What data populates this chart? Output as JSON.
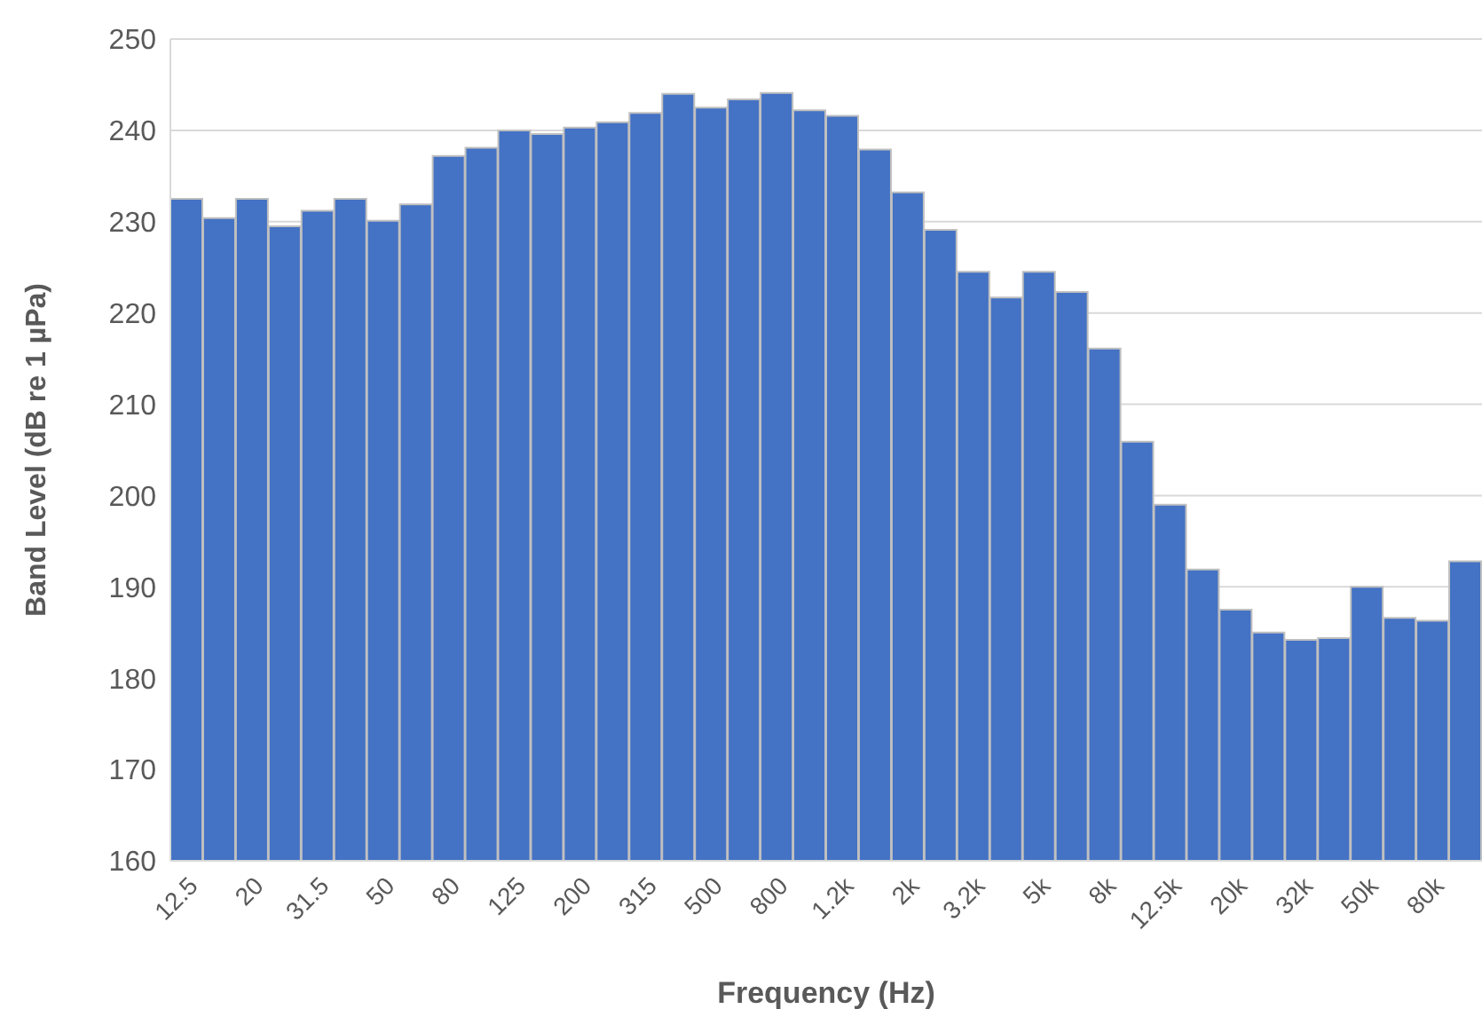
{
  "chart_data": {
    "type": "bar",
    "xlabel": "Frequency (Hz)",
    "ylabel": "Band Level (dB re 1 µPa)",
    "categories": [
      "12.5",
      null,
      "20",
      null,
      "31.5",
      null,
      "50",
      null,
      "80",
      null,
      "125",
      null,
      "200",
      null,
      "315",
      null,
      "500",
      null,
      "800",
      null,
      "1.2k",
      null,
      "2k",
      null,
      "3.2k",
      null,
      "5k",
      null,
      "8k",
      null,
      "12.5k",
      null,
      "20k",
      null,
      "32k",
      null,
      "50k",
      null,
      "80k",
      null
    ],
    "values": [
      232.5,
      230.4,
      232.5,
      229.5,
      231.2,
      232.5,
      230.1,
      231.9,
      237.2,
      238.1,
      240,
      239.6,
      240.3,
      240.9,
      241.9,
      244,
      242.5,
      243.4,
      244.1,
      242.2,
      241.6,
      237.9,
      233.2,
      229.1,
      224.5,
      221.7,
      224.5,
      222.3,
      216.1,
      205.9,
      199,
      191.9,
      187.5,
      185,
      184.2,
      184.4,
      190,
      186.6,
      186.3,
      192.8
    ],
    "color": "#4472c4",
    "ylim": [
      160,
      250
    ],
    "yticks": [
      160,
      170,
      180,
      190,
      200,
      210,
      220,
      230,
      240,
      250
    ],
    "grid": "y"
  }
}
